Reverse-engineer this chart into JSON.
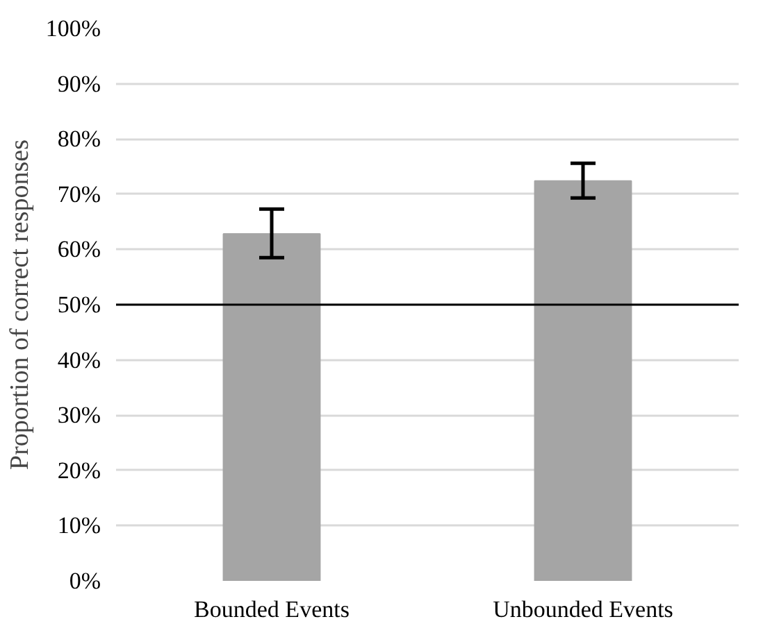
{
  "chart_data": {
    "type": "bar",
    "ylabel": "Proportion of correct responses",
    "categories": [
      "Bounded Events",
      "Unbounded Events"
    ],
    "values": [
      62.8,
      72.4
    ],
    "color": "#a5a5a5",
    "errors": [
      [
        58.5,
        67.3
      ],
      [
        69.3,
        75.6
      ]
    ],
    "ylim": [
      0,
      100
    ],
    "yticks": [
      {
        "value": 0,
        "label": "0%"
      },
      {
        "value": 10,
        "label": "10%"
      },
      {
        "value": 20,
        "label": "20%"
      },
      {
        "value": 30,
        "label": "30%"
      },
      {
        "value": 40,
        "label": "40%"
      },
      {
        "value": 50,
        "label": "50%"
      },
      {
        "value": 60,
        "label": "60%"
      },
      {
        "value": 70,
        "label": "70%"
      },
      {
        "value": 80,
        "label": "80%"
      },
      {
        "value": 90,
        "label": "90%"
      },
      {
        "value": 100,
        "label": "100%"
      }
    ],
    "ref_lines": [
      {
        "axis": "y",
        "value": 50,
        "color": "#000000",
        "line_style": "solid"
      }
    ],
    "grid": "y"
  }
}
